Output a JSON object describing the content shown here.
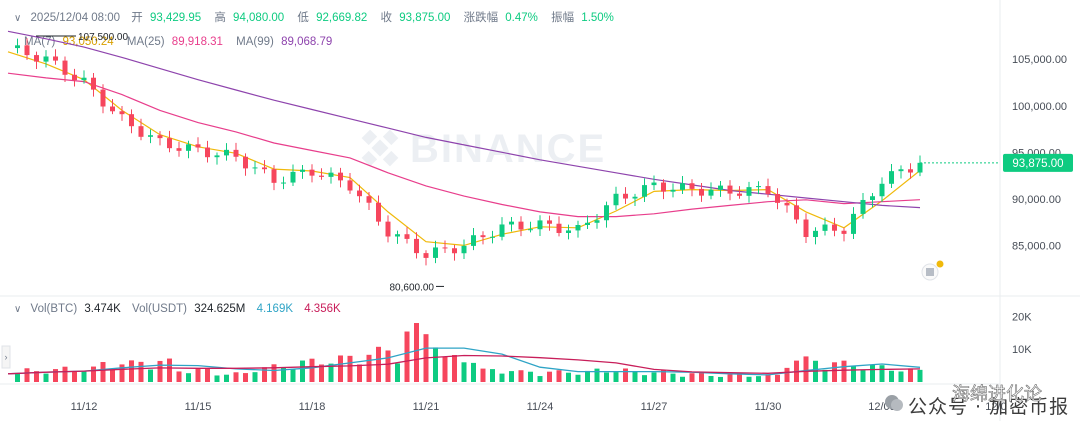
{
  "header": {
    "datetime": "2025/12/04 08:00",
    "open_label": "开",
    "open_value": "93,429.95",
    "high_label": "高",
    "high_value": "94,080.00",
    "low_label": "低",
    "low_value": "92,669.82",
    "close_label": "收",
    "close_value": "93,875.00",
    "change_label": "涨跌幅",
    "change_value": "0.47%",
    "amplitude_label": "振幅",
    "amplitude_value": "1.50%"
  },
  "ma": {
    "ma7_label": "MA(7)",
    "ma7_value": "93,050.24",
    "ma25_label": "MA(25)",
    "ma25_value": "89,918.31",
    "ma99_label": "MA(99)",
    "ma99_value": "89,068.79"
  },
  "volume_header": {
    "vol_btc_label": "Vol(BTC)",
    "vol_btc_value": "3.474K",
    "vol_usdt_label": "Vol(USDT)",
    "vol_usdt_value": "324.625M",
    "vol_ma1_value": "4.169K",
    "vol_ma2_value": "4.356K"
  },
  "watermark": {
    "brand": "BINANCE",
    "account": "公众号 · 加密币报",
    "overlay_tag": "海绵进化论"
  },
  "colors": {
    "up": "#0ecb81",
    "down": "#f6465d",
    "ma7": "#f0b90b",
    "ma25": "#e83e8c",
    "ma99": "#8e44ad",
    "vol_ma1": "#2fa4c6",
    "vol_ma2": "#c81e5a"
  },
  "chart_data": [
    {
      "type": "candlestick",
      "x": [
        "11/10",
        "11/11",
        "11/12",
        "11/13",
        "11/14",
        "11/15",
        "11/16",
        "11/17",
        "11/18",
        "11/19",
        "11/20",
        "11/21",
        "11/22",
        "11/23",
        "11/24",
        "11/25",
        "11/26",
        "11/27",
        "11/28",
        "11/29",
        "11/30",
        "12/01",
        "12/02",
        "12/03",
        "12/04"
      ],
      "x_tick_labels": [
        "11/12",
        "11/15",
        "11/18",
        "11/21",
        "11/24",
        "11/27",
        "11/30",
        "12/03",
        "12/0"
      ],
      "close": [
        106200,
        105000,
        102500,
        98500,
        96000,
        95200,
        94500,
        92000,
        93000,
        91500,
        86500,
        84000,
        85000,
        87000,
        87200,
        86600,
        90000,
        91400,
        91000,
        90800,
        91000,
        86500,
        86800,
        92000,
        93875
      ],
      "y_tick_labels": [
        "105,000.00",
        "100,000.00",
        "95,000.00",
        "90,000.00",
        "85,000.00"
      ],
      "last_price_label": "93,875.00",
      "high_annotation": "107,500.00",
      "low_annotation": "80,600.00",
      "ylim": [
        80000,
        109000
      ],
      "series": [
        {
          "name": "MA(7)",
          "values": [
            105800,
            104500,
            102800,
            99500,
            96900,
            95600,
            94900,
            93200,
            93000,
            92300,
            88600,
            85400,
            85000,
            86200,
            87000,
            86900,
            88700,
            90800,
            91000,
            90900,
            91000,
            88600,
            86900,
            89800,
            93050
          ]
        },
        {
          "name": "MA(25)",
          "values": [
            103500,
            103000,
            102600,
            101200,
            99500,
            98200,
            97200,
            96000,
            95200,
            94400,
            92800,
            91400,
            90300,
            89400,
            88600,
            88100,
            88100,
            88400,
            88900,
            89300,
            89700,
            89900,
            89500,
            89700,
            89918
          ]
        },
        {
          "name": "MA(99)",
          "values": [
            108000,
            107200,
            106300,
            105200,
            104000,
            102800,
            101700,
            100600,
            99600,
            98600,
            97600,
            96600,
            95800,
            95000,
            94200,
            93500,
            92800,
            92100,
            91500,
            90900,
            90500,
            90100,
            89700,
            89300,
            89069
          ]
        }
      ]
    },
    {
      "type": "bar",
      "y_tick_labels": [
        "20K",
        "10K"
      ],
      "ylim": [
        0,
        25000
      ],
      "x": [
        "11/10",
        "11/11",
        "11/12",
        "11/13",
        "11/14",
        "11/15",
        "11/16",
        "11/17",
        "11/18",
        "11/19",
        "11/20",
        "11/21",
        "11/22",
        "11/23",
        "11/24",
        "11/25",
        "11/26",
        "11/27",
        "11/28",
        "11/29",
        "11/30",
        "12/01",
        "12/02",
        "12/03",
        "12/04"
      ],
      "values": [
        2500,
        3500,
        4000,
        5500,
        6000,
        3500,
        2500,
        4500,
        6000,
        7000,
        9000,
        15000,
        7000,
        3500,
        3000,
        3000,
        3500,
        3000,
        2500,
        2000,
        2000,
        6500,
        5500,
        4500,
        3474
      ]
    }
  ]
}
